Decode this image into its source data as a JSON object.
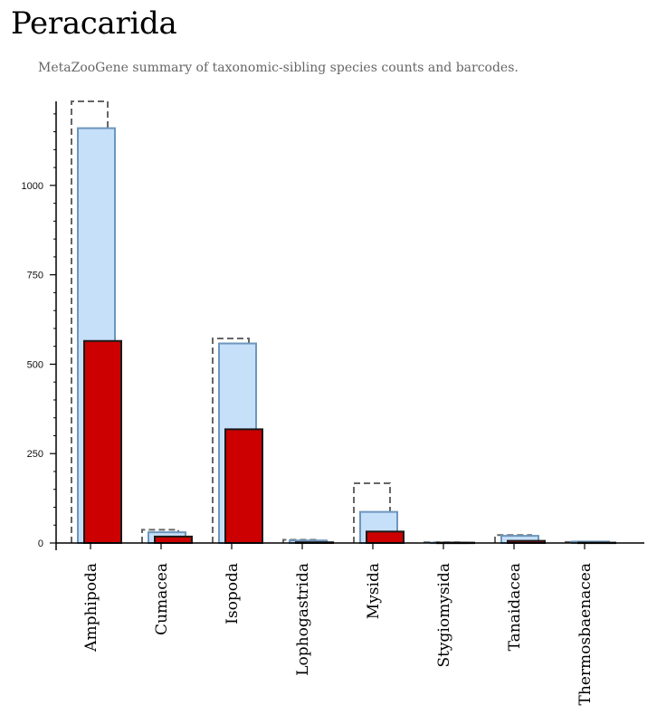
{
  "title": "Peracarida",
  "subtitle": "MetaZooGene summary of taxonomic-sibling species counts and barcodes.",
  "colors": {
    "species_fill": "#c6e0fa",
    "species_stroke": "#6d96bd",
    "barcodes_fill": "#cc0000",
    "barcodes_stroke": "#1a1a1a",
    "dashed_stroke": "#666666",
    "axis": "#000000"
  },
  "chart_data": {
    "type": "bar",
    "categories": [
      "Amphipoda",
      "Cumacea",
      "Isopoda",
      "Lophogastrida",
      "Mysida",
      "Stygiomysida",
      "Tanaidacea",
      "Thermosbaenacea"
    ],
    "series": [
      {
        "values": [
          1235,
          37,
          572,
          9,
          167,
          2,
          22,
          3
        ]
      },
      {
        "values": [
          1160,
          30,
          558,
          7,
          87,
          1,
          20,
          4
        ]
      },
      {
        "values": [
          565,
          18,
          318,
          2,
          32,
          1,
          6,
          1
        ]
      }
    ],
    "y_ticks": [
      0,
      250,
      500,
      750,
      1000
    ],
    "ylim": [
      0,
      1235
    ],
    "grid": false
  }
}
